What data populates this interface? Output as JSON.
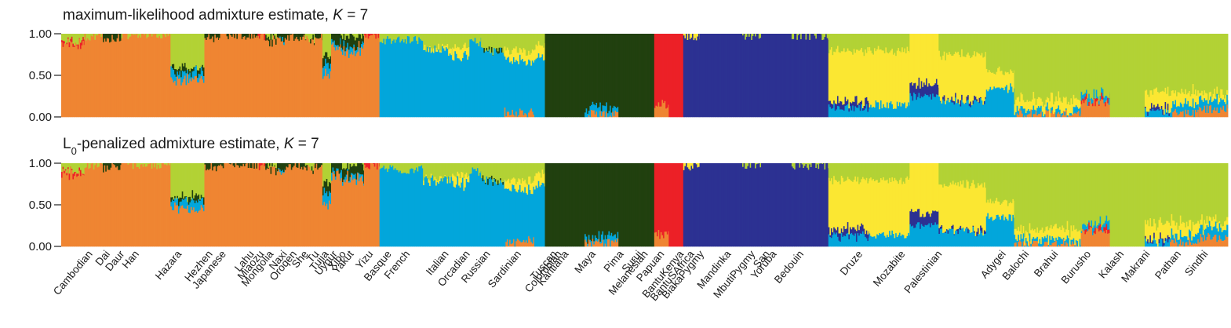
{
  "chart_data": {
    "type": "stacked-bar",
    "colors": {
      "orange": "#ef8532",
      "red": "#ec2027",
      "darkgreen": "#21400f",
      "lightgreen": "#b2d235",
      "yellow": "#fbe732",
      "blue": "#02a6db",
      "navy": "#2c3192"
    },
    "panels": [
      {
        "title": "maximum-likelihood admixture estimate, ",
        "title_k": "K",
        "title_eq": " = 7",
        "yticks": [
          "1.00",
          "0.50",
          "0.00"
        ],
        "ylim": [
          0,
          1
        ],
        "variant": "ml"
      },
      {
        "title_prefix": "L",
        "title_sub": "0",
        "title": "-penalized admixture estimate, ",
        "title_k": "K",
        "title_eq": " = 7",
        "yticks": [
          "1.00",
          "0.50",
          "0.00"
        ],
        "ylim": [
          0,
          1
        ],
        "variant": "l0"
      }
    ],
    "populations": [
      {
        "name": "Cambodian",
        "label_pos": 0.028,
        "span": [
          0.0,
          0.024
        ],
        "comp": {
          "orange": 0.88,
          "red": 0.03,
          "lightgreen": 0.09
        }
      },
      {
        "name": "Dai",
        "label_pos": 0.046,
        "span": [
          0.024,
          0.043
        ],
        "comp": {
          "orange": 0.97,
          "lightgreen": 0.03
        }
      },
      {
        "name": "Daur",
        "label_pos": 0.061,
        "span": [
          0.043,
          0.062
        ],
        "comp": {
          "orange": 0.95,
          "darkgreen": 0.05
        }
      },
      {
        "name": "Han",
        "label_pos": 0.076,
        "span": [
          0.062,
          0.113
        ],
        "comp": {
          "orange": 0.99,
          "lightgreen": 0.01
        }
      },
      {
        "name": "Hazara",
        "label_pos": 0.12,
        "span": [
          0.113,
          0.148
        ],
        "comp": {
          "orange": 0.45,
          "blue": 0.1,
          "darkgreen": 0.05,
          "lightgreen": 0.4
        }
      },
      {
        "name": "Hezhen",
        "label_pos": 0.152,
        "span": [
          0.148,
          0.163
        ],
        "comp": {
          "orange": 0.95,
          "darkgreen": 0.05
        }
      },
      {
        "name": "Japanese",
        "label_pos": 0.166,
        "span": [
          0.163,
          0.195
        ],
        "comp": {
          "orange": 0.99,
          "darkgreen": 0.01
        }
      },
      {
        "name": "Lahu",
        "label_pos": 0.195,
        "span": [
          0.195,
          0.203
        ],
        "comp": {
          "orange": 0.99,
          "darkgreen": 0.01
        }
      },
      {
        "name": "Miaozu",
        "label_pos": 0.205,
        "span": [
          0.203,
          0.211
        ],
        "comp": {
          "orange": 0.97,
          "red": 0.03
        }
      },
      {
        "name": "Mongolia",
        "label_pos": 0.215,
        "span": [
          0.211,
          0.223
        ],
        "comp": {
          "orange": 0.92,
          "darkgreen": 0.06,
          "lightgreen": 0.02
        }
      },
      {
        "name": "Naxi",
        "label_pos": 0.229,
        "span": [
          0.223,
          0.231
        ],
        "comp": {
          "orange": 0.92,
          "darkgreen": 0.05,
          "blue": 0.03
        }
      },
      {
        "name": "Oroqen",
        "label_pos": 0.239,
        "span": [
          0.231,
          0.244
        ],
        "comp": {
          "orange": 0.97,
          "darkgreen": 0.03
        }
      },
      {
        "name": "She",
        "label_pos": 0.251,
        "span": [
          0.244,
          0.252
        ],
        "comp": {
          "orange": 0.96,
          "darkgreen": 0.04
        }
      },
      {
        "name": "Tu",
        "label_pos": 0.262,
        "span": [
          0.252,
          0.262
        ],
        "comp": {
          "orange": 0.92,
          "lightgreen": 0.06,
          "darkgreen": 0.02
        }
      },
      {
        "name": "Tujia",
        "label_pos": 0.272,
        "span": [
          0.262,
          0.27
        ],
        "comp": {
          "orange": 0.97,
          "darkgreen": 0.03
        }
      },
      {
        "name": "Uygur",
        "label_pos": 0.281,
        "span": [
          0.27,
          0.279
        ],
        "comp": {
          "orange": 0.5,
          "blue": 0.15,
          "lightgreen": 0.25,
          "darkgreen": 0.1
        }
      },
      {
        "name": "Xibo",
        "label_pos": 0.29,
        "span": [
          0.279,
          0.289
        ],
        "comp": {
          "orange": 0.85,
          "darkgreen": 0.1,
          "blue": 0.05
        }
      },
      {
        "name": "Yakut",
        "label_pos": 0.298,
        "span": [
          0.289,
          0.313
        ],
        "comp": {
          "orange": 0.8,
          "blue": 0.05,
          "darkgreen": 0.12,
          "lightgreen": 0.03
        }
      },
      {
        "name": "Yizu",
        "label_pos": 0.318,
        "span": [
          0.313,
          0.329
        ],
        "comp": {
          "orange": 0.98,
          "red": 0.02
        }
      },
      {
        "name": "Basque",
        "label_pos": 0.337,
        "span": [
          0.329,
          0.374
        ],
        "comp": {
          "blue": 0.92,
          "lightgreen": 0.08
        }
      },
      {
        "name": "French",
        "label_pos": 0.356,
        "span": [
          0.374,
          0.404
        ],
        "comp": {
          "blue": 0.8,
          "lightgreen": 0.17,
          "yellow": 0.03
        }
      },
      {
        "name": "Italian",
        "label_pos": 0.396,
        "span": [
          0.404,
          0.422
        ],
        "comp": {
          "blue": 0.75,
          "lightgreen": 0.15,
          "yellow": 0.1
        }
      },
      {
        "name": "Orcadian",
        "label_pos": 0.418,
        "span": [
          0.422,
          0.434
        ],
        "comp": {
          "blue": 0.9,
          "lightgreen": 0.1
        }
      },
      {
        "name": "Russian",
        "label_pos": 0.439,
        "span": [
          0.434,
          0.458
        ],
        "comp": {
          "blue": 0.78,
          "darkgreen": 0.02,
          "lightgreen": 0.2
        }
      },
      {
        "name": "Sardinian",
        "label_pos": 0.471,
        "span": [
          0.458,
          0.489
        ],
        "comp": {
          "blue": 0.62,
          "orange": 0.06,
          "lightgreen": 0.2,
          "yellow": 0.12
        }
      },
      {
        "name": "Tuscan",
        "label_pos": 0.508,
        "span": [
          0.489,
          0.5
        ],
        "comp": {
          "blue": 0.72,
          "yellow": 0.15,
          "lightgreen": 0.13
        }
      },
      {
        "name": "Colombian",
        "label_pos": 0.513,
        "span": [
          0.5,
          0.521
        ],
        "comp": {
          "darkgreen": 1.0
        }
      },
      {
        "name": "Karitiana",
        "label_pos": 0.52,
        "span": [
          0.521,
          0.541
        ],
        "comp": {
          "darkgreen": 1.0
        }
      },
      {
        "name": "Maya",
        "label_pos": 0.548,
        "span": [
          0.541,
          0.576
        ],
        "comp": {
          "orange": 0.04,
          "blue": 0.08,
          "darkgreen": 0.88
        }
      },
      {
        "name": "Pima",
        "label_pos": 0.577,
        "span": [
          0.576,
          0.593
        ],
        "comp": {
          "darkgreen": 1.0
        }
      },
      {
        "name": "Surui",
        "label_pos": 0.596,
        "span": [
          0.593,
          0.613
        ],
        "comp": {
          "darkgreen": 1.0
        }
      },
      {
        "name": "Melanesian",
        "label_pos": 0.602,
        "span": [
          0.613,
          0.628
        ],
        "comp": {
          "orange": 0.15,
          "red": 0.85
        }
      },
      {
        "name": "Papuan",
        "label_pos": 0.619,
        "span": [
          0.628,
          0.643
        ],
        "comp": {
          "red": 1.0
        }
      },
      {
        "name": "BantuKenya",
        "label_pos": 0.639,
        "span": [
          0.643,
          0.66
        ],
        "comp": {
          "navy": 0.97,
          "yellow": 0.03
        }
      },
      {
        "name": "BantuSAfrica",
        "label_pos": 0.65,
        "span": [
          0.66,
          0.68
        ],
        "comp": {
          "navy": 1.0
        }
      },
      {
        "name": "BiakaPygmy",
        "label_pos": 0.66,
        "span": [
          0.68,
          0.704
        ],
        "comp": {
          "navy": 1.0
        }
      },
      {
        "name": "Mandinka",
        "label_pos": 0.688,
        "span": [
          0.704,
          0.724
        ],
        "comp": {
          "navy": 0.97,
          "lightgreen": 0.03
        }
      },
      {
        "name": "MbutiPygmy",
        "label_pos": 0.713,
        "span": [
          0.724,
          0.745
        ],
        "comp": {
          "navy": 1.0
        }
      },
      {
        "name": "San",
        "label_pos": 0.728,
        "span": [
          0.745,
          0.755
        ],
        "comp": {
          "navy": 1.0
        }
      },
      {
        "name": "Yoruba",
        "label_pos": 0.735,
        "span": [
          0.755,
          0.793
        ],
        "comp": {
          "navy": 0.98,
          "lightgreen": 0.02
        }
      },
      {
        "name": "Bedouin",
        "label_pos": 0.763,
        "span": [
          0.793,
          0.835
        ],
        "comp": {
          "blue": 0.12,
          "navy": 0.08,
          "yellow": 0.6,
          "lightgreen": 0.2
        }
      },
      {
        "name": "Druze",
        "label_pos": 0.824,
        "span": [
          0.835,
          0.877
        ],
        "comp": {
          "blue": 0.15,
          "yellow": 0.65,
          "lightgreen": 0.2
        }
      },
      {
        "name": "Mozabite",
        "label_pos": 0.868,
        "span": [
          0.877,
          0.907
        ],
        "comp": {
          "blue": 0.25,
          "navy": 0.15,
          "yellow": 0.6
        }
      },
      {
        "name": "Palestinian",
        "label_pos": 0.906,
        "span": [
          0.907,
          0.956
        ],
        "comp": {
          "blue": 0.18,
          "navy": 0.02,
          "yellow": 0.55,
          "lightgreen": 0.25
        }
      },
      {
        "name": "Adygei",
        "label_pos": 0.972,
        "span": [
          0.956,
          0.985
        ],
        "comp": {
          "blue": 0.35,
          "yellow": 0.2,
          "lightgreen": 0.45
        }
      },
      {
        "name": "Balochi",
        "label_pos": 0.996,
        "span": [
          0.985,
          1.02
        ],
        "comp": {
          "orange": 0.03,
          "blue": 0.05,
          "yellow": 0.12,
          "lightgreen": 0.8
        }
      },
      {
        "name": "Brahui",
        "label_pos": 1.026,
        "span": [
          1.02,
          1.054
        ],
        "comp": {
          "orange": 0.03,
          "blue": 0.05,
          "yellow": 0.14,
          "lightgreen": 0.78
        }
      },
      {
        "name": "Burusho",
        "label_pos": 1.06,
        "span": [
          1.054,
          1.084
        ],
        "comp": {
          "orange": 0.18,
          "blue": 0.06,
          "red": 0.03,
          "lightgreen": 0.73
        }
      },
      {
        "name": "Kalash",
        "label_pos": 1.094,
        "span": [
          1.084,
          1.12
        ],
        "comp": {
          "lightgreen": 1.0
        }
      },
      {
        "name": "Makrani",
        "label_pos": 1.121,
        "span": [
          1.12,
          1.146
        ],
        "comp": {
          "navy": 0.04,
          "blue": 0.06,
          "yellow": 0.2,
          "lightgreen": 0.7
        }
      },
      {
        "name": "Pathan",
        "label_pos": 1.153,
        "span": [
          1.146,
          1.176
        ],
        "comp": {
          "orange": 0.05,
          "blue": 0.1,
          "yellow": 0.15,
          "lightgreen": 0.7
        }
      },
      {
        "name": "Sindhi",
        "label_pos": 1.181,
        "span": [
          1.176,
          1.206
        ],
        "comp": {
          "orange": 0.1,
          "blue": 0.12,
          "yellow": 0.08,
          "lightgreen": 0.7
        }
      }
    ]
  }
}
